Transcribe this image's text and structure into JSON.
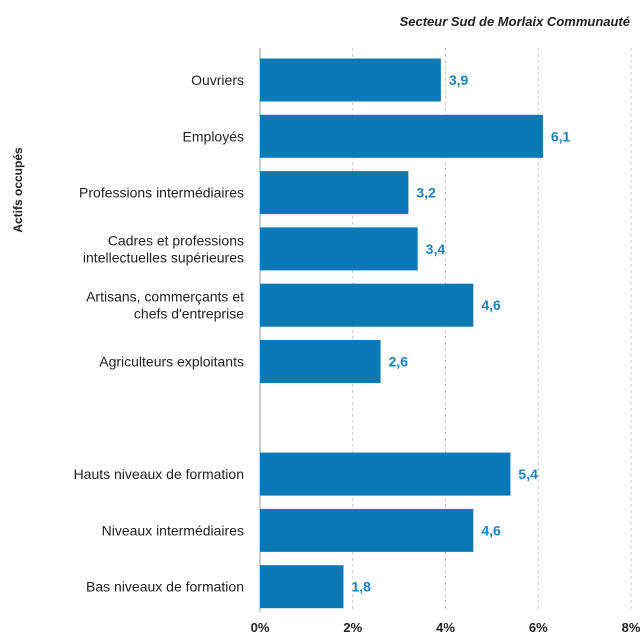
{
  "chart_data": {
    "type": "bar",
    "orientation": "horizontal",
    "subtitle": "Secteur Sud de Morlaix Communauté",
    "ylabel": "Actifs occupés",
    "categories": [
      [
        "Ouvriers"
      ],
      [
        "Employés"
      ],
      [
        "Professions intermédiaires"
      ],
      [
        "Cadres et professions",
        "intellectuelles supérieures"
      ],
      [
        "Artisans, commerçants et",
        "chefs d'entreprise"
      ],
      [
        "Agriculteurs exploitants"
      ],
      [
        ""
      ],
      [
        "Hauts niveaux de formation"
      ],
      [
        "Niveaux intermédiaires"
      ],
      [
        "Bas niveaux de formation"
      ]
    ],
    "values": [
      3.9,
      6.1,
      3.2,
      3.4,
      4.6,
      2.6,
      null,
      5.4,
      4.6,
      1.8
    ],
    "value_labels": [
      "3,9",
      "6,1",
      "3,2",
      "3,4",
      "4,6",
      "2,6",
      "",
      "5,4",
      "4,6",
      "1,8"
    ],
    "xlim": [
      0,
      8
    ],
    "x_ticks": [
      0,
      2,
      4,
      6,
      8
    ],
    "x_tick_labels": [
      "0%",
      "2%",
      "4%",
      "6%",
      "8%"
    ],
    "grid": "vertical-dashed",
    "colors": {
      "bar": "#0a79b5",
      "value_label": "#1a82c0",
      "grid": "#c8c8c8",
      "axis": "#999999"
    }
  }
}
